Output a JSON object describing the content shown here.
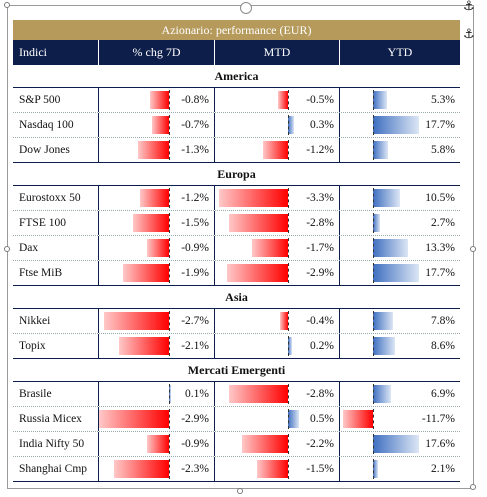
{
  "title": "Azionario: performance (EUR)",
  "headers": [
    "Indici",
    "% chg 7D",
    "MTD",
    "YTD"
  ],
  "colors": {
    "title_bg": "#b59a5c",
    "header_bg": "#0d1e4a",
    "negative": "#ff0000",
    "positive": "#3f6fc0"
  },
  "sections": [
    {
      "name": "America",
      "rows": [
        {
          "name": "S&P 500",
          "d7": "-0.8%",
          "mtd": "-0.5%",
          "ytd": "5.3%"
        },
        {
          "name": "Nasdaq 100",
          "d7": "-0.7%",
          "mtd": "0.3%",
          "ytd": "17.7%"
        },
        {
          "name": "Dow Jones",
          "d7": "-1.3%",
          "mtd": "-1.2%",
          "ytd": "5.8%"
        }
      ]
    },
    {
      "name": "Europa",
      "rows": [
        {
          "name": "Eurostoxx 50",
          "d7": "-1.2%",
          "mtd": "-3.3%",
          "ytd": "10.5%"
        },
        {
          "name": "FTSE 100",
          "d7": "-1.5%",
          "mtd": "-2.8%",
          "ytd": "2.7%"
        },
        {
          "name": "Dax",
          "d7": "-0.9%",
          "mtd": "-1.7%",
          "ytd": "13.3%"
        },
        {
          "name": "Ftse MiB",
          "d7": "-1.9%",
          "mtd": "-2.9%",
          "ytd": "17.7%"
        }
      ]
    },
    {
      "name": "Asia",
      "rows": [
        {
          "name": "Nikkei",
          "d7": "-2.7%",
          "mtd": "-0.4%",
          "ytd": "7.8%"
        },
        {
          "name": "Topix",
          "d7": "-2.1%",
          "mtd": "0.2%",
          "ytd": "8.6%"
        }
      ]
    },
    {
      "name": "Mercati Emergenti",
      "rows": [
        {
          "name": "Brasile",
          "d7": "0.1%",
          "mtd": "-2.8%",
          "ytd": "6.9%"
        },
        {
          "name": "Russia Micex",
          "d7": "-2.9%",
          "mtd": "0.5%",
          "ytd": "-11.7%"
        },
        {
          "name": "India Nifty 50",
          "d7": "-0.9%",
          "mtd": "-2.2%",
          "ytd": "17.6%"
        },
        {
          "name": "Shanghai Cmp",
          "d7": "-2.3%",
          "mtd": "-1.5%",
          "ytd": "2.1%"
        }
      ]
    }
  ]
}
